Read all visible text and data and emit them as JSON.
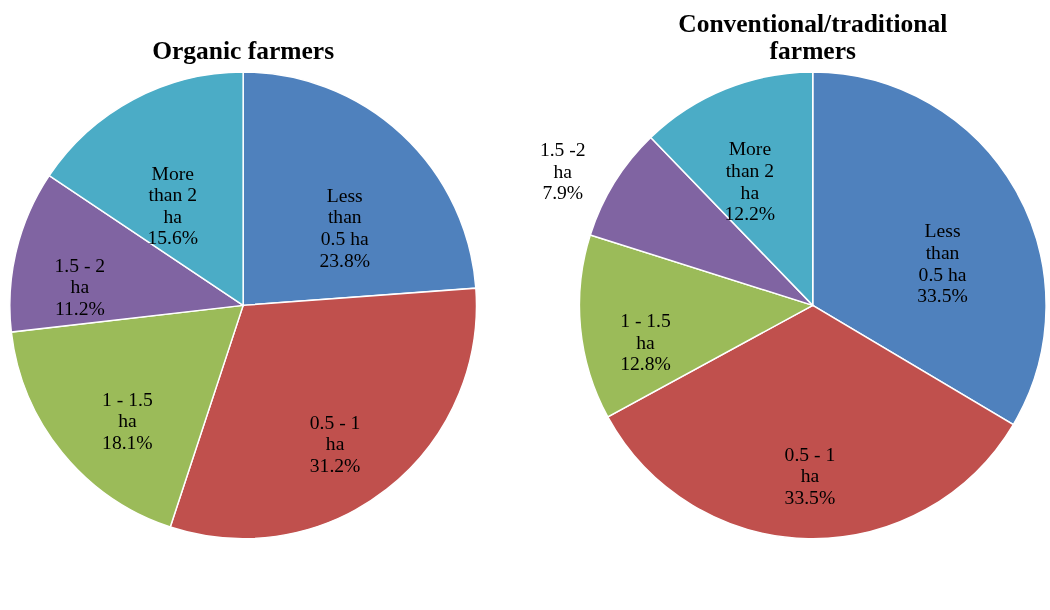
{
  "chart_data": [
    {
      "type": "pie",
      "title": "Organic farmers",
      "categories": [
        "Less than 0.5 ha",
        "0.5 - 1 ha",
        "1 - 1.5 ha",
        "1.5 - 2 ha",
        "More than 2 ha"
      ],
      "values": [
        23.8,
        31.2,
        18.1,
        11.2,
        15.6
      ],
      "value_labels": [
        "23.8%",
        "31.2%",
        "18.1%",
        "11.2%",
        "15.6%"
      ],
      "colors": [
        "#4f81bd",
        "#c0504d",
        "#9bbb59",
        "#8064a2",
        "#4bacc6"
      ],
      "legend": false
    },
    {
      "type": "pie",
      "title": "Conventional/traditional farmers",
      "categories": [
        "Less than 0.5 ha",
        "0.5 - 1 ha",
        "1 - 1.5 ha",
        "1.5 -2 ha",
        "More than 2 ha"
      ],
      "values": [
        33.5,
        33.5,
        12.8,
        7.9,
        12.2
      ],
      "value_labels": [
        "33.5%",
        "33.5%",
        "12.8%",
        "7.9%",
        "12.2%"
      ],
      "colors": [
        "#4f81bd",
        "#c0504d",
        "#9bbb59",
        "#8064a2",
        "#4bacc6"
      ],
      "legend": false
    }
  ]
}
